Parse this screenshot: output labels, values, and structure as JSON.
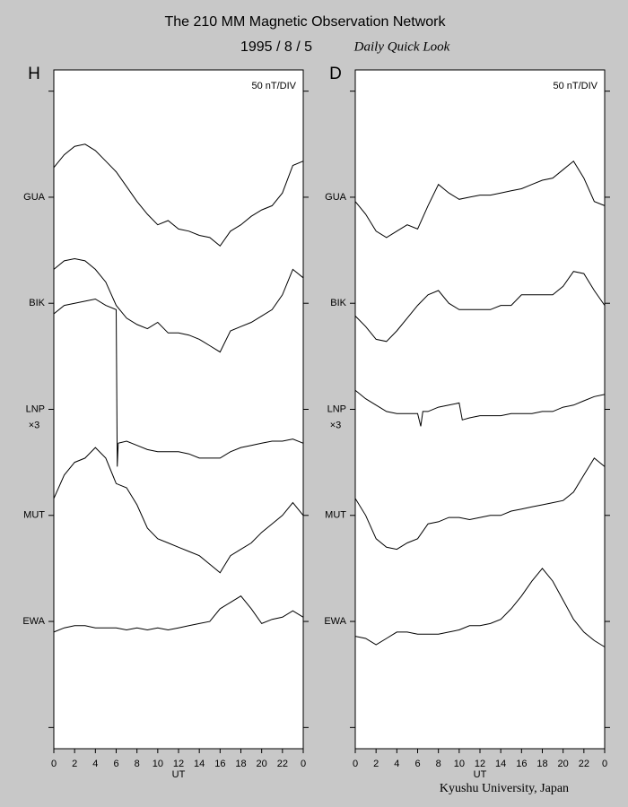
{
  "header": {
    "title": "The 210 MM Magnetic Observation Network",
    "date": "1995 / 8 / 5",
    "subtitle": "Daily Quick Look"
  },
  "footer": "Kyushu University, Japan",
  "chart_data": [
    {
      "type": "line",
      "title": "H",
      "scale_label": "50 nT/DIV",
      "xlabel": "UT",
      "xlim": [
        0,
        24
      ],
      "xticks": [
        0,
        2,
        4,
        6,
        8,
        10,
        12,
        14,
        16,
        18,
        20,
        22,
        {
          "value": 24,
          "label": "0"
        }
      ],
      "ylim": [
        0,
        320
      ],
      "yticks": [
        10,
        60,
        110,
        160,
        210,
        260,
        310
      ],
      "series": [
        {
          "name": "GUA",
          "baseline": 260,
          "color": "#000000",
          "x": [
            0,
            1,
            2,
            3,
            4,
            5,
            6,
            7,
            8,
            9,
            10,
            11,
            12,
            13,
            14,
            15,
            16,
            17,
            18,
            19,
            20,
            21,
            22,
            23,
            24
          ],
          "values": [
            274,
            280,
            284,
            285,
            282,
            277,
            272,
            265,
            258,
            252,
            247,
            249,
            245,
            244,
            242,
            241,
            237,
            244,
            247,
            251,
            254,
            256,
            262,
            275,
            277
          ]
        },
        {
          "name": "BIK",
          "baseline": 210,
          "color": "#000000",
          "x": [
            0,
            1,
            2,
            3,
            4,
            5,
            6,
            7,
            8,
            9,
            10,
            11,
            12,
            13,
            14,
            15,
            16,
            17,
            18,
            19,
            20,
            21,
            22,
            23,
            24
          ],
          "values": [
            226,
            230,
            231,
            230,
            226,
            220,
            209,
            203,
            200,
            198,
            201,
            196,
            196,
            195,
            193,
            190,
            187,
            197,
            199,
            201,
            204,
            207,
            214,
            226,
            222
          ]
        },
        {
          "name": "LNP",
          "note": "×3",
          "baseline": 160,
          "color": "#000000",
          "x": [
            0,
            1,
            2,
            3,
            4,
            5,
            6,
            6.1,
            6.2,
            7,
            8,
            9,
            10,
            11,
            12,
            13,
            14,
            15,
            16,
            17,
            18,
            19,
            20,
            21,
            22,
            23,
            24
          ],
          "values": [
            205,
            209,
            210,
            211,
            212,
            209,
            207,
            133,
            144,
            145,
            143,
            141,
            140,
            140,
            140,
            139,
            137,
            137,
            137,
            140,
            142,
            143,
            144,
            145,
            145,
            146,
            144
          ]
        },
        {
          "name": "MUT",
          "baseline": 110,
          "color": "#000000",
          "x": [
            0,
            1,
            2,
            3,
            4,
            5,
            6,
            7,
            8,
            9,
            10,
            11,
            12,
            13,
            14,
            15,
            16,
            17,
            18,
            19,
            20,
            21,
            22,
            23,
            24
          ],
          "values": [
            118,
            129,
            135,
            137,
            142,
            137,
            125,
            123,
            115,
            104,
            99,
            97,
            95,
            93,
            91,
            87,
            83,
            91,
            94,
            97,
            102,
            106,
            110,
            116,
            110
          ]
        },
        {
          "name": "EWA",
          "baseline": 60,
          "color": "#000000",
          "x": [
            0,
            1,
            2,
            3,
            4,
            5,
            6,
            7,
            8,
            9,
            10,
            11,
            12,
            13,
            14,
            15,
            16,
            17,
            18,
            19,
            20,
            21,
            22,
            23,
            24
          ],
          "values": [
            55,
            57,
            58,
            58,
            57,
            57,
            57,
            56,
            57,
            56,
            57,
            56,
            57,
            58,
            59,
            60,
            66,
            69,
            72,
            66,
            59,
            61,
            62,
            65,
            62
          ]
        }
      ]
    },
    {
      "type": "line",
      "title": "D",
      "scale_label": "50 nT/DIV",
      "xlabel": "UT",
      "xlim": [
        0,
        24
      ],
      "xticks": [
        0,
        2,
        4,
        6,
        8,
        10,
        12,
        14,
        16,
        18,
        20,
        22,
        {
          "value": 24,
          "label": "0"
        }
      ],
      "ylim": [
        0,
        320
      ],
      "yticks": [
        10,
        60,
        110,
        160,
        210,
        260,
        310
      ],
      "series": [
        {
          "name": "GUA",
          "baseline": 260,
          "color": "#000000",
          "x": [
            0,
            1,
            2,
            3,
            4,
            5,
            6,
            7,
            8,
            9,
            10,
            11,
            12,
            13,
            14,
            15,
            16,
            17,
            18,
            19,
            20,
            21,
            22,
            23,
            24
          ],
          "values": [
            258,
            252,
            244,
            241,
            244,
            247,
            245,
            256,
            266,
            262,
            259,
            260,
            261,
            261,
            262,
            263,
            264,
            266,
            268,
            269,
            273,
            277,
            269,
            258,
            256
          ]
        },
        {
          "name": "BIK",
          "baseline": 210,
          "color": "#000000",
          "x": [
            0,
            1,
            2,
            3,
            4,
            5,
            6,
            7,
            8,
            9,
            10,
            11,
            12,
            13,
            14,
            15,
            16,
            17,
            18,
            19,
            20,
            21,
            22,
            23,
            24
          ],
          "values": [
            204,
            199,
            193,
            192,
            197,
            203,
            209,
            214,
            216,
            210,
            207,
            207,
            207,
            207,
            209,
            209,
            214,
            214,
            214,
            214,
            218,
            225,
            224,
            216,
            209
          ]
        },
        {
          "name": "LNP",
          "note": "×3",
          "baseline": 160,
          "color": "#000000",
          "x": [
            0,
            1,
            2,
            3,
            4,
            5,
            6,
            6.3,
            6.5,
            7,
            8,
            9,
            10,
            10.3,
            11,
            12,
            13,
            14,
            15,
            16,
            17,
            18,
            19,
            20,
            21,
            22,
            23,
            24
          ],
          "values": [
            169,
            165,
            162,
            159,
            158,
            158,
            158,
            152,
            159,
            159,
            161,
            162,
            163,
            155,
            156,
            157,
            157,
            157,
            158,
            158,
            158,
            159,
            159,
            161,
            162,
            164,
            166,
            167
          ]
        },
        {
          "name": "MUT",
          "baseline": 110,
          "color": "#000000",
          "x": [
            0,
            1,
            2,
            3,
            4,
            5,
            6,
            7,
            8,
            9,
            10,
            11,
            12,
            13,
            14,
            15,
            16,
            17,
            18,
            19,
            20,
            21,
            22,
            23,
            24
          ],
          "values": [
            118,
            110,
            99,
            95,
            94,
            97,
            99,
            106,
            107,
            109,
            109,
            108,
            109,
            110,
            110,
            112,
            113,
            114,
            115,
            116,
            117,
            121,
            129,
            137,
            133
          ]
        },
        {
          "name": "EWA",
          "baseline": 60,
          "color": "#000000",
          "x": [
            0,
            1,
            2,
            3,
            4,
            5,
            6,
            7,
            8,
            9,
            10,
            11,
            12,
            13,
            14,
            15,
            16,
            17,
            18,
            19,
            20,
            21,
            22,
            23,
            24
          ],
          "values": [
            53,
            52,
            49,
            52,
            55,
            55,
            54,
            54,
            54,
            55,
            56,
            58,
            58,
            59,
            61,
            66,
            72,
            79,
            85,
            79,
            70,
            61,
            55,
            51,
            48
          ]
        }
      ]
    }
  ]
}
